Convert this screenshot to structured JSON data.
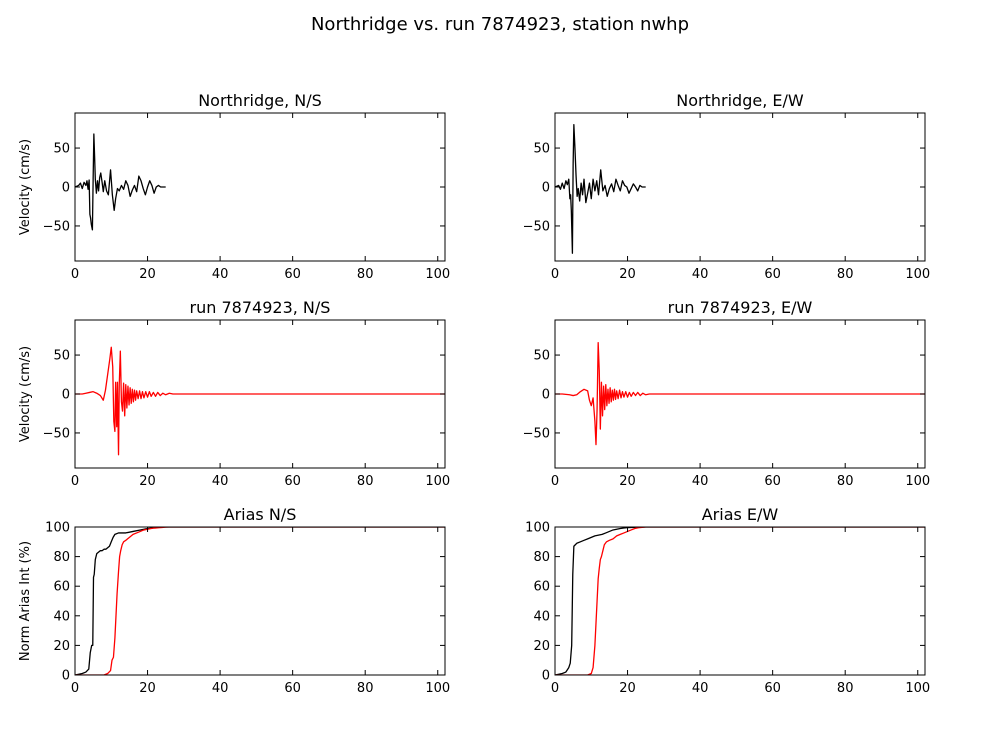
{
  "figure": {
    "title": "Northridge vs. run 7874923, station nwhp"
  },
  "colors": {
    "record": "#000000",
    "simulation": "#ff0000",
    "axes": "#000000",
    "background": "#ffffff"
  },
  "chart_data": [
    {
      "type": "line",
      "title": "Northridge, N/S",
      "xlabel": "",
      "ylabel": "Velocity (cm/s)",
      "xlim": [
        0,
        102
      ],
      "ylim": [
        -95,
        95
      ],
      "xticks": [
        0,
        20,
        40,
        60,
        80,
        100
      ],
      "yticks": [
        -50,
        0,
        50
      ],
      "grid": false,
      "series": [
        {
          "color": "#000000",
          "x": [
            0,
            1,
            1.5,
            2,
            2.5,
            3,
            3.3,
            3.6,
            3.9,
            4.1,
            4.3,
            4.5,
            4.8,
            5.0,
            5.2,
            5.4,
            5.6,
            5.9,
            6.2,
            6.5,
            6.8,
            7.1,
            7.5,
            7.8,
            8.2,
            8.7,
            9.2,
            9.8,
            10.3,
            10.8,
            11.2,
            11.7,
            12.2,
            12.8,
            13.4,
            14.0,
            14.6,
            15.2,
            15.8,
            16.4,
            17.0,
            17.6,
            18.2,
            18.8,
            19.4,
            20.0,
            20.6,
            21.2,
            21.8,
            22.4,
            23.0,
            23.6,
            24.2,
            25.0
          ],
          "y": [
            0,
            2,
            5,
            -2,
            6,
            2,
            8,
            -3,
            9,
            -35,
            -40,
            -48,
            -55,
            10,
            68,
            40,
            10,
            -8,
            8,
            -5,
            12,
            18,
            5,
            -6,
            8,
            -5,
            -10,
            22,
            -10,
            -30,
            -15,
            -2,
            -5,
            2,
            -3,
            8,
            2,
            -12,
            -4,
            2,
            -6,
            14,
            8,
            -2,
            -10,
            0,
            8,
            2,
            -8,
            0,
            2,
            0,
            0,
            0
          ]
        }
      ]
    },
    {
      "type": "line",
      "title": "Northridge, E/W",
      "xlabel": "",
      "ylabel": "",
      "xlim": [
        0,
        102
      ],
      "ylim": [
        -95,
        95
      ],
      "xticks": [
        0,
        20,
        40,
        60,
        80,
        100
      ],
      "yticks": [
        -50,
        0,
        50
      ],
      "grid": false,
      "series": [
        {
          "color": "#000000",
          "x": [
            0,
            1,
            1.5,
            2,
            2.5,
            3,
            3.4,
            3.8,
            4.1,
            4.3,
            4.5,
            4.8,
            5.0,
            5.2,
            5.5,
            5.8,
            6.1,
            6.4,
            6.8,
            7.2,
            7.6,
            8.0,
            8.5,
            9.0,
            9.5,
            10.0,
            10.5,
            11.0,
            11.5,
            12.0,
            12.6,
            13.2,
            13.8,
            14.4,
            15.0,
            15.6,
            16.2,
            16.8,
            17.4,
            18.0,
            18.6,
            19.2,
            19.8,
            20.4,
            21.0,
            21.6,
            22.2,
            22.8,
            23.4,
            24.0,
            24.6,
            25.0
          ],
          "y": [
            0,
            2,
            -3,
            5,
            -2,
            8,
            3,
            10,
            -15,
            -10,
            -30,
            -85,
            30,
            80,
            50,
            15,
            -12,
            -2,
            -18,
            5,
            -10,
            10,
            -20,
            -8,
            5,
            -15,
            10,
            -5,
            8,
            -10,
            22,
            -5,
            2,
            -12,
            -2,
            4,
            -6,
            10,
            2,
            -5,
            8,
            2,
            0,
            -8,
            -2,
            4,
            0,
            -5,
            2,
            0,
            0,
            0
          ]
        }
      ]
    },
    {
      "type": "line",
      "title": "run 7874923, N/S",
      "xlabel": "",
      "ylabel": "Velocity (cm/s)",
      "xlim": [
        0,
        102
      ],
      "ylim": [
        -95,
        95
      ],
      "xticks": [
        0,
        20,
        40,
        60,
        80,
        100
      ],
      "yticks": [
        -50,
        0,
        50
      ],
      "grid": false,
      "series": [
        {
          "color": "#ff0000",
          "x": [
            0,
            2,
            3,
            4,
            5,
            6,
            7,
            7.8,
            8.4,
            9,
            9.6,
            10.0,
            10.4,
            10.7,
            11.0,
            11.2,
            11.5,
            11.7,
            12.0,
            12.2,
            12.5,
            12.8,
            13.1,
            13.4,
            13.7,
            14.0,
            14.3,
            14.6,
            14.9,
            15.2,
            15.5,
            15.8,
            16.1,
            16.4,
            16.7,
            17.0,
            17.4,
            17.8,
            18.2,
            18.6,
            19.0,
            19.5,
            20.0,
            20.5,
            21.0,
            21.6,
            22.2,
            22.8,
            23.5,
            24.2,
            25.0,
            26.0,
            27.0,
            28.0,
            30.0,
            50.0,
            80.0,
            102.0
          ],
          "y": [
            0,
            0,
            1,
            2,
            3,
            1,
            -2,
            -8,
            5,
            25,
            45,
            60,
            35,
            -35,
            -48,
            15,
            -42,
            15,
            -78,
            12,
            55,
            -10,
            -22,
            14,
            -28,
            12,
            -18,
            10,
            -14,
            8,
            -12,
            6,
            -10,
            5,
            -8,
            4,
            -6,
            4,
            -6,
            3,
            -5,
            3,
            -4,
            3,
            -3,
            2,
            -3,
            2,
            -2,
            1,
            -1,
            1,
            0,
            0,
            0,
            0,
            0,
            0
          ]
        }
      ]
    },
    {
      "type": "line",
      "title": "run 7874923, E/W",
      "xlabel": "",
      "ylabel": "",
      "xlim": [
        0,
        102
      ],
      "ylim": [
        -95,
        95
      ],
      "xticks": [
        0,
        20,
        40,
        60,
        80,
        100
      ],
      "yticks": [
        -50,
        0,
        50
      ],
      "grid": false,
      "series": [
        {
          "color": "#ff0000",
          "x": [
            0,
            2,
            4,
            5,
            6,
            7,
            8,
            9,
            9.5,
            10,
            10.5,
            11,
            11.3,
            11.6,
            11.9,
            12.2,
            12.5,
            12.8,
            13.1,
            13.4,
            13.7,
            14.0,
            14.3,
            14.6,
            14.9,
            15.2,
            15.5,
            15.8,
            16.1,
            16.4,
            16.7,
            17.0,
            17.4,
            17.8,
            18.2,
            18.6,
            19.0,
            19.5,
            20.0,
            20.5,
            21.0,
            21.6,
            22.2,
            22.8,
            23.5,
            24.2,
            25.0,
            26.0,
            30.0,
            60.0,
            102.0
          ],
          "y": [
            0,
            0,
            -1,
            -2,
            -1,
            3,
            6,
            4,
            -8,
            -15,
            -5,
            -35,
            -65,
            -20,
            66,
            30,
            -45,
            15,
            -28,
            10,
            -20,
            12,
            -15,
            6,
            -12,
            8,
            -10,
            5,
            -8,
            6,
            -7,
            4,
            -6,
            5,
            -5,
            3,
            -4,
            3,
            -4,
            2,
            -3,
            2,
            -2,
            2,
            -2,
            1,
            -1,
            0,
            0,
            0,
            0
          ]
        }
      ]
    },
    {
      "type": "line",
      "title": "Arias N/S",
      "xlabel": "",
      "ylabel": "Norm Arias Int (%)",
      "xlim": [
        0,
        102
      ],
      "ylim": [
        0,
        100
      ],
      "xticks": [
        0,
        20,
        40,
        60,
        80,
        100
      ],
      "yticks": [
        0,
        20,
        40,
        60,
        80,
        100
      ],
      "grid": false,
      "series": [
        {
          "color": "#000000",
          "x": [
            0,
            2,
            3,
            3.8,
            4.2,
            4.6,
            4.9,
            5.1,
            5.3,
            5.6,
            6.0,
            6.5,
            7.0,
            7.5,
            8.0,
            8.5,
            9.0,
            9.5,
            10.0,
            10.5,
            11.0,
            12.0,
            14.0,
            16.0,
            18.0,
            20.0,
            22.0,
            24.0,
            26.0,
            102.0
          ],
          "y": [
            0,
            1,
            2,
            4,
            15,
            20,
            20,
            66,
            68,
            78,
            82,
            83,
            84,
            84,
            85,
            85,
            86,
            87,
            90,
            93,
            95,
            96,
            96,
            97,
            98,
            99,
            99.5,
            100,
            100,
            100
          ]
        },
        {
          "color": "#ff0000",
          "x": [
            0,
            8,
            9,
            9.8,
            10.2,
            10.6,
            11.0,
            11.3,
            11.6,
            12.0,
            12.3,
            12.6,
            13.0,
            13.4,
            14.0,
            15.0,
            16.0,
            17.0,
            18.0,
            19.0,
            20.0,
            21.0,
            22.0,
            23.0,
            24.0,
            25.0,
            26.0,
            27.0,
            102.0
          ],
          "y": [
            0,
            0,
            1,
            3,
            10,
            12,
            25,
            40,
            55,
            70,
            80,
            84,
            88,
            90,
            91,
            93,
            95,
            96,
            97,
            98,
            98.5,
            99,
            99.3,
            99.5,
            99.7,
            99.9,
            100,
            100,
            100
          ]
        }
      ]
    },
    {
      "type": "line",
      "title": "Arias E/W",
      "xlabel": "",
      "ylabel": "",
      "xlim": [
        0,
        102
      ],
      "ylim": [
        0,
        100
      ],
      "xticks": [
        0,
        20,
        40,
        60,
        80,
        100
      ],
      "yticks": [
        0,
        20,
        40,
        60,
        80,
        100
      ],
      "grid": false,
      "series": [
        {
          "color": "#000000",
          "x": [
            0,
            2,
            3,
            3.8,
            4.2,
            4.6,
            4.9,
            5.2,
            5.6,
            6.0,
            7.0,
            8.0,
            9.0,
            10.0,
            11.0,
            12.0,
            13.0,
            14.0,
            15.0,
            16.0,
            17.0,
            18.0,
            19.0,
            20.0,
            22.0,
            25.0,
            102.0
          ],
          "y": [
            0,
            1,
            2,
            5,
            8,
            20,
            68,
            87,
            88,
            89,
            90,
            91,
            92,
            93,
            94,
            94.5,
            95,
            96,
            97,
            98,
            98.5,
            99,
            99.3,
            99.6,
            99.8,
            100,
            100
          ]
        },
        {
          "color": "#ff0000",
          "x": [
            0,
            9,
            10,
            10.5,
            11.0,
            11.3,
            11.6,
            11.9,
            12.2,
            12.5,
            12.8,
            13.2,
            13.6,
            14.2,
            15.0,
            16.0,
            17.0,
            18.0,
            19.0,
            20.0,
            21.0,
            22.0,
            23.0,
            24.0,
            25.0,
            102.0
          ],
          "y": [
            0,
            0,
            1,
            5,
            20,
            35,
            50,
            65,
            72,
            78,
            80,
            84,
            88,
            90,
            91,
            92,
            94,
            95,
            96,
            97,
            98,
            99,
            99.5,
            99.8,
            100,
            100
          ]
        }
      ]
    }
  ]
}
